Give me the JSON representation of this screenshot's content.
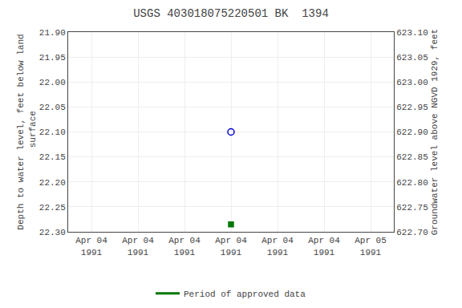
{
  "chart_data": {
    "type": "scatter",
    "title": "USGS 403018075220501 BK  1394",
    "y_label": "Depth to water level, feet below land\n surface",
    "y2_label": "Groundwater level above NGVD 1929, feet",
    "categories": [
      "Apr 04\n1991",
      "Apr 04\n1991",
      "Apr 04\n1991",
      "Apr 04\n1991",
      "Apr 04\n1991",
      "Apr 04\n1991",
      "Apr 05\n1991"
    ],
    "series": [
      {
        "color": "#0000cc",
        "marker": "circle-open",
        "values": [
          null,
          null,
          null,
          22.1,
          null,
          null,
          null
        ]
      },
      {
        "color": "#007700",
        "marker": "square",
        "values": [
          null,
          null,
          null,
          22.285,
          null,
          null,
          null
        ]
      },
      {
        "name": "Period of approved data",
        "color": "#007700",
        "type": "line",
        "values": [
          null,
          null,
          null,
          null,
          null,
          null,
          null
        ]
      }
    ],
    "ylim": [
      22.3,
      21.9
    ],
    "yticks": [
      {
        "value": 21.9,
        "label": "21.90"
      },
      21.95,
      {
        "value": 22.0,
        "label": "22.00"
      },
      22.05,
      {
        "value": 22.1,
        "label": "22.10"
      },
      22.15,
      {
        "value": 22.2,
        "label": "22.20"
      },
      22.25,
      {
        "value": 22.3,
        "label": "22.30"
      }
    ],
    "y2lim": [
      622.7,
      623.1
    ],
    "y2ticks": [
      {
        "value": 622.7,
        "label": "622.70"
      },
      622.75,
      {
        "value": 622.8,
        "label": "622.80"
      },
      622.85,
      {
        "value": 622.9,
        "label": "622.90"
      },
      622.95,
      {
        "value": 623.0,
        "label": "623.00"
      },
      623.05,
      {
        "value": 623.1,
        "label": "623.10"
      }
    ],
    "grid": true,
    "legend": "bottom"
  }
}
